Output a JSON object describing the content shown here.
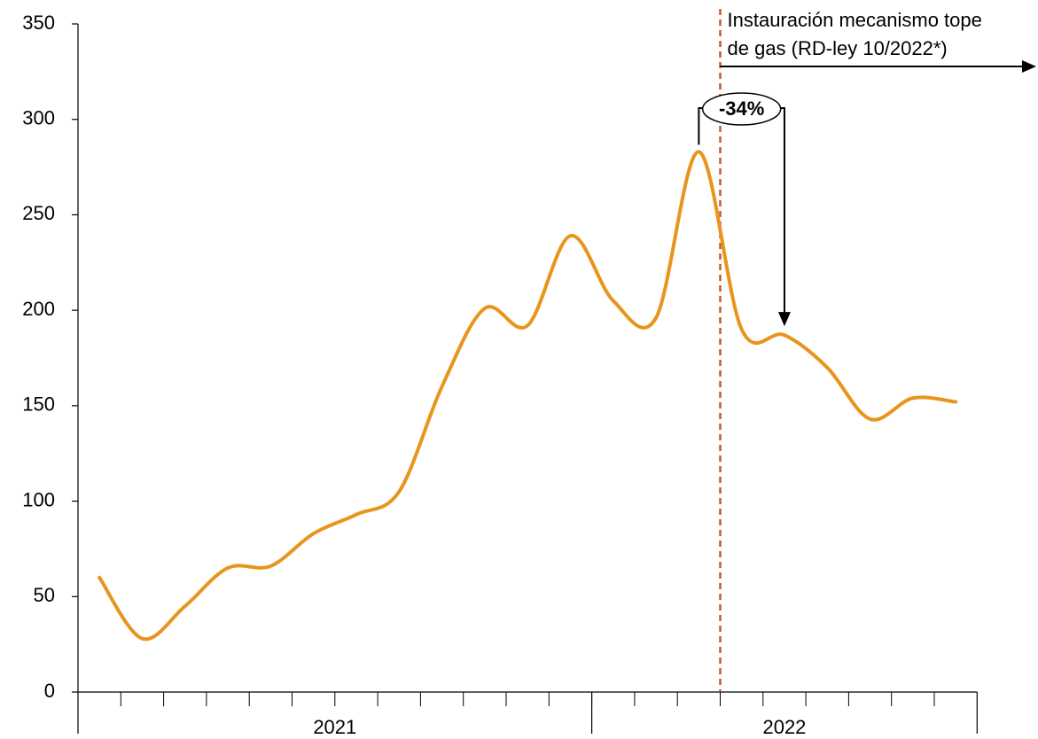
{
  "chart_data": {
    "type": "line",
    "categories": [
      null,
      null,
      null,
      null,
      null,
      null,
      null,
      null,
      null,
      null,
      null,
      null,
      null,
      null,
      null,
      null,
      null,
      null,
      null,
      null,
      null
    ],
    "groups": [
      {
        "label": "2021",
        "count": 12
      },
      {
        "label": "2022",
        "count": 9
      }
    ],
    "values": [
      60,
      28,
      45,
      65,
      66,
      83,
      93,
      105,
      160,
      201,
      192,
      239,
      205,
      196,
      283,
      190,
      187,
      170,
      143,
      154,
      152
    ],
    "color": "#e8951d",
    "ylim": [
      0,
      350
    ],
    "yticks": [
      0,
      50,
      100,
      150,
      200,
      250,
      300,
      350
    ],
    "event": {
      "index": 14.5,
      "label_lines": [
        "Instauración mecanismo tope",
        "de gas (RD-ley 10/2022*)"
      ],
      "color": "#c9572a"
    },
    "change": {
      "label": "-34%",
      "from": 14,
      "to": 16
    }
  }
}
